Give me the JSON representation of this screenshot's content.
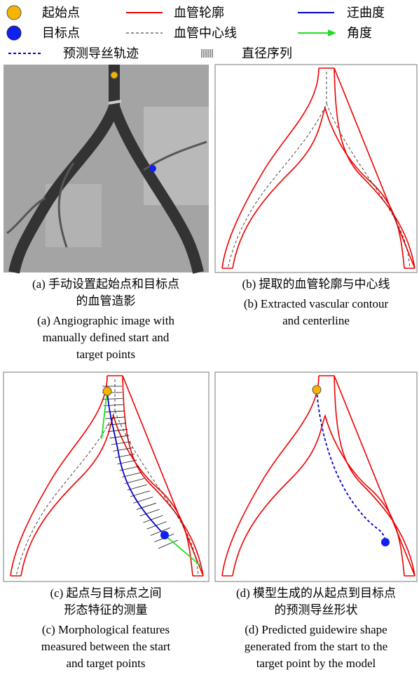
{
  "legend": [
    {
      "label": "起始点"
    },
    {
      "label": "血管轮廓"
    },
    {
      "label": "迂曲度"
    },
    {
      "label": "目标点"
    },
    {
      "label": "血管中心线"
    },
    {
      "label": "角度"
    },
    {
      "label": "预测导丝轨迹"
    },
    {
      "label": "直径序列"
    }
  ],
  "panels": [
    {
      "caption_zh": [
        "(a) 手动设置起始点和目标点",
        "的血管造影"
      ],
      "caption_en": [
        "(a) Angiographic image with",
        "manually defined start and",
        "target points"
      ]
    },
    {
      "caption_zh": [
        "(b) 提取的血管轮廓与中心线"
      ],
      "caption_en": [
        "(b) Extracted vascular contour",
        "and centerline"
      ]
    },
    {
      "caption_zh": [
        "(c) 起点与目标点之间",
        "形态特征的测量"
      ],
      "caption_en": [
        "(c) Morphological features",
        "measured between the start",
        "and target points"
      ]
    },
    {
      "caption_zh": [
        "(d) 模型生成的从起点到目标点",
        "的预测导丝形状"
      ],
      "caption_en": [
        "(d) Predicted guidewire shape",
        "generated from the start to the",
        "target point by the model"
      ]
    }
  ]
}
